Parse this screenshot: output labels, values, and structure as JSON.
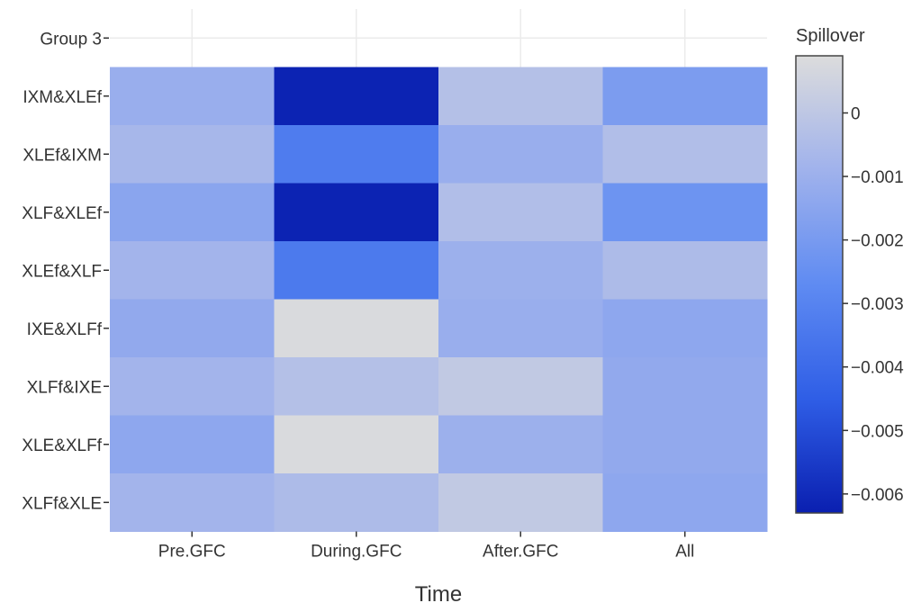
{
  "chart_data": {
    "type": "heatmap",
    "title": "",
    "xlabel": "Time",
    "ylabel": "",
    "x_categories": [
      "Pre.GFC",
      "During.GFC",
      "After.GFC",
      "All"
    ],
    "y_categories": [
      "Group 3",
      "IXM&XLEf",
      "XLEf&IXM",
      "XLF&XLEf",
      "XLEf&XLF",
      "IXE&XLFf",
      "XLFf&IXE",
      "XLE&XLFf",
      "XLFf&XLE"
    ],
    "values": [
      [
        null,
        null,
        null,
        null
      ],
      [
        -0.0011,
        -0.0062,
        -0.0003,
        -0.0019
      ],
      [
        -0.0007,
        -0.0033,
        -0.0011,
        -0.0004
      ],
      [
        -0.0015,
        -0.0062,
        -0.0004,
        -0.0023
      ],
      [
        -0.0008,
        -0.0034,
        -0.001,
        -0.0005
      ],
      [
        -0.0013,
        0.0008,
        -0.0011,
        -0.0014
      ],
      [
        -0.0008,
        -0.0003,
        0.0001,
        -0.0013
      ],
      [
        -0.0014,
        0.0008,
        -0.001,
        -0.0013
      ],
      [
        -0.0008,
        -0.0005,
        0.0001,
        -0.0014
      ]
    ],
    "colorbar": {
      "title": "Spillover",
      "range": [
        -0.0063,
        0.0009
      ],
      "ticks": [
        0,
        -0.001,
        -0.002,
        -0.003,
        -0.004,
        -0.005,
        -0.006
      ],
      "tick_labels": [
        "0",
        "−0.001",
        "−0.002",
        "−0.003",
        "−0.004",
        "−0.005",
        "−0.006"
      ],
      "colorscale": [
        [
          0.0,
          "#0a1fb0"
        ],
        [
          0.25,
          "#2f5ee6"
        ],
        [
          0.5,
          "#5f8bf2"
        ],
        [
          0.75,
          "#a0b2ec"
        ],
        [
          1.0,
          "#dcdcdc"
        ]
      ]
    },
    "grid": true
  }
}
